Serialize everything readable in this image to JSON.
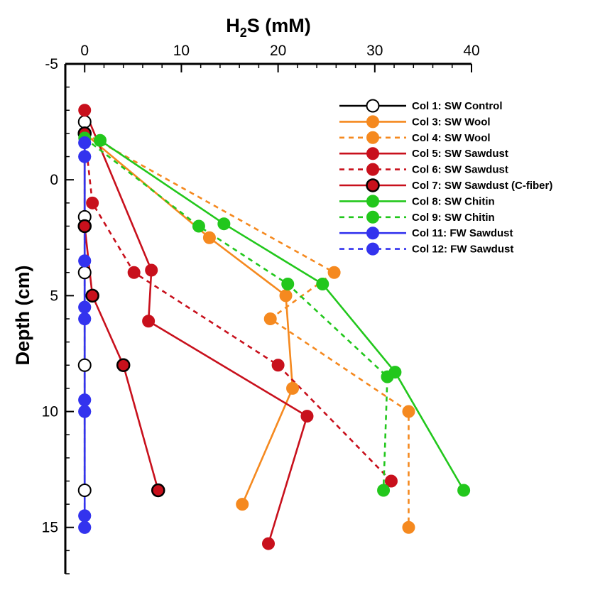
{
  "chart_data": {
    "type": "line",
    "title": "",
    "xlabel_main": "H",
    "xlabel_sub": "2",
    "xlabel_rest": "S (mM)",
    "ylabel": "Depth (cm)",
    "xlim": [
      -2,
      40
    ],
    "ylim": [
      -5,
      17
    ],
    "x_ticks": [
      0,
      10,
      20,
      30,
      40
    ],
    "x_tick_labels": [
      "0",
      "10",
      "20",
      "30",
      "40"
    ],
    "y_ticks": [
      -5,
      0,
      5,
      10,
      15
    ],
    "y_tick_labels": [
      "-5",
      "0",
      "5",
      "10",
      "15"
    ],
    "y_minor_step": 1,
    "x_minor_step": 2,
    "legend_position": "top-right",
    "series": [
      {
        "name": "Col 1: SW Control",
        "color": "#000000",
        "marker_fill": "none",
        "dash": false,
        "points": [
          [
            0,
            -2.5
          ],
          [
            0,
            -2
          ],
          [
            0,
            1.6
          ],
          [
            0,
            2
          ],
          [
            0,
            4
          ],
          [
            0,
            8
          ],
          [
            0,
            13.4
          ]
        ]
      },
      {
        "name": "Col 3: SW Wool",
        "color": "#F5891F",
        "marker_fill": "#F5891F",
        "dash": false,
        "points": [
          [
            0,
            -2
          ],
          [
            12.9,
            2.5
          ],
          [
            20.8,
            5
          ],
          [
            21.5,
            9
          ],
          [
            16.3,
            14
          ]
        ]
      },
      {
        "name": "Col 4: SW Wool",
        "color": "#F5891F",
        "marker_fill": "#F5891F",
        "dash": true,
        "points": [
          [
            0,
            -2
          ],
          [
            25.8,
            4
          ],
          [
            19.2,
            6
          ],
          [
            33.5,
            10
          ],
          [
            33.5,
            15
          ]
        ]
      },
      {
        "name": "Col 5: SW Sawdust",
        "color": "#C8101C",
        "marker_fill": "#C8101C",
        "dash": false,
        "points": [
          [
            0,
            -3
          ],
          [
            6.9,
            3.9
          ],
          [
            6.6,
            6.1
          ],
          [
            23,
            10.2
          ],
          [
            19,
            15.7
          ]
        ]
      },
      {
        "name": "Col 6: SW Sawdust",
        "color": "#C8101C",
        "marker_fill": "#C8101C",
        "dash": true,
        "points": [
          [
            0,
            -2
          ],
          [
            0.8,
            1
          ],
          [
            5.1,
            4
          ],
          [
            20,
            8
          ],
          [
            31.7,
            13
          ]
        ]
      },
      {
        "name": "Col 7: SW Sawdust (C-fiber)",
        "color": "#C8101C",
        "marker_fill": "#C8101C",
        "marker_edge": "#000000",
        "dash": false,
        "points": [
          [
            0,
            -2
          ],
          [
            0,
            2
          ],
          [
            0.8,
            5
          ],
          [
            4,
            8
          ],
          [
            7.6,
            13.4
          ]
        ]
      },
      {
        "name": "Col 8: SW Chitin",
        "color": "#22C71C",
        "marker_fill": "#22C71C",
        "dash": false,
        "points": [
          [
            1.6,
            -1.7
          ],
          [
            14.4,
            1.9
          ],
          [
            24.6,
            4.5
          ],
          [
            32.1,
            8.3
          ],
          [
            39.2,
            13.4
          ]
        ]
      },
      {
        "name": "Col 9: SW Chitin",
        "color": "#22C71C",
        "marker_fill": "#22C71C",
        "dash": true,
        "points": [
          [
            0,
            -1.8
          ],
          [
            11.8,
            2
          ],
          [
            21,
            4.5
          ],
          [
            31.3,
            8.5
          ],
          [
            30.9,
            13.4
          ]
        ]
      },
      {
        "name": "Col 11: FW Sawdust",
        "color": "#3333EE",
        "marker_fill": "#3333EE",
        "dash": false,
        "points": [
          [
            0,
            -1.6
          ],
          [
            0,
            -1
          ],
          [
            0,
            3.5
          ],
          [
            0,
            5.5
          ],
          [
            0,
            6
          ],
          [
            0,
            9.5
          ],
          [
            0,
            10
          ],
          [
            0,
            14.5
          ],
          [
            0,
            15
          ]
        ]
      },
      {
        "name": "Col 12: FW Sawdust",
        "color": "#3333EE",
        "marker_fill": "#3333EE",
        "dash": true,
        "points": [
          [
            0,
            -1.6
          ],
          [
            0,
            -1
          ],
          [
            0,
            3.5
          ],
          [
            0,
            5.5
          ],
          [
            0,
            6
          ],
          [
            0,
            9.5
          ],
          [
            0,
            10
          ],
          [
            0,
            14.5
          ],
          [
            0,
            15
          ]
        ]
      }
    ]
  }
}
